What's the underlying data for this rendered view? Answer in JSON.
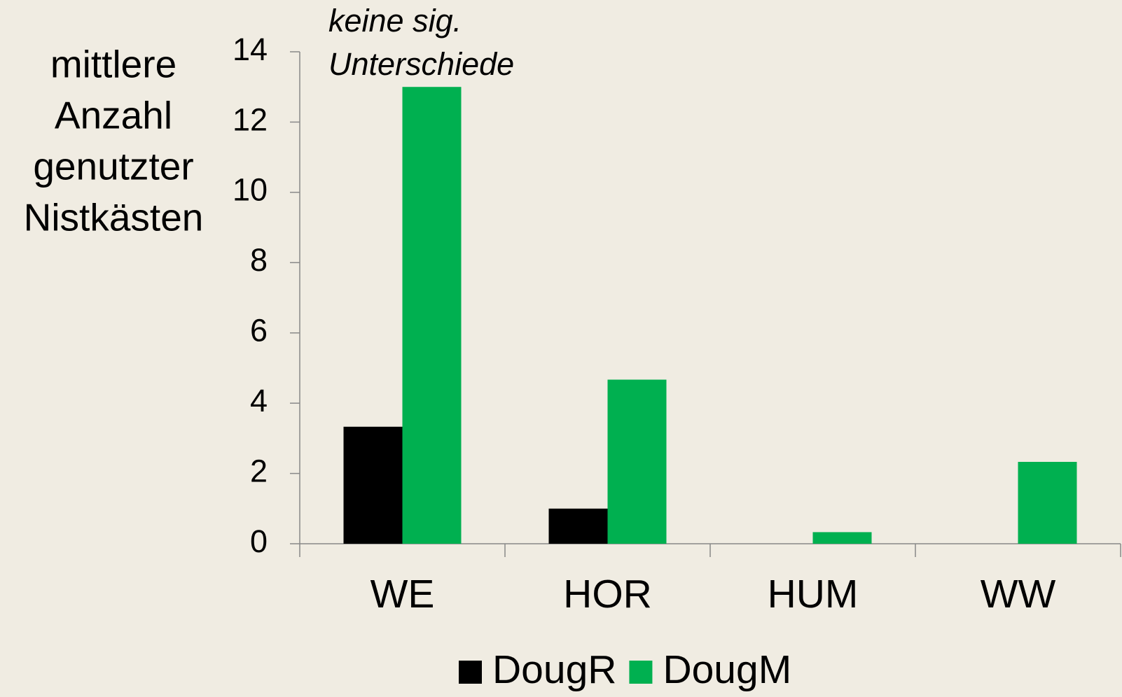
{
  "chart_data": {
    "type": "bar",
    "y_label": [
      "mittlere",
      "Anzahl",
      "genutzter",
      "Nistkästen"
    ],
    "annotation": [
      "keine sig.",
      "Unterschiede"
    ],
    "categories": [
      "WE",
      "HOR",
      "HUM",
      "WW"
    ],
    "series": [
      {
        "name": "DougR",
        "color": "#000000",
        "values": [
          3.33,
          1,
          0,
          0
        ]
      },
      {
        "name": "DougM",
        "color": "#00b050",
        "values": [
          13,
          4.67,
          0.33,
          2.33
        ]
      }
    ],
    "ylim": [
      0,
      14
    ],
    "yticks": [
      0,
      2,
      4,
      6,
      8,
      10,
      12,
      14
    ],
    "grid": false,
    "legend": "bottom"
  }
}
